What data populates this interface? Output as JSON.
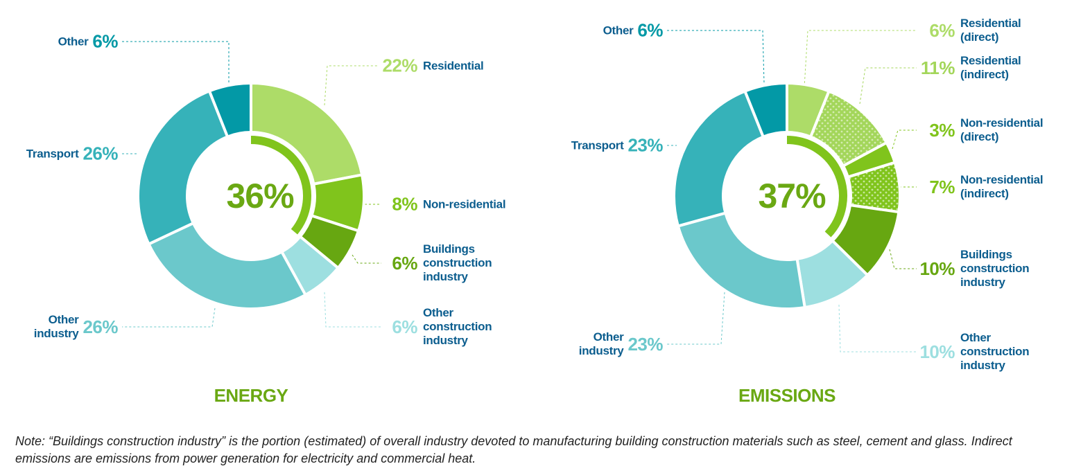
{
  "chart_data": [
    {
      "type": "pie",
      "variant": "donut",
      "title": "ENERGY",
      "center_label": "36%",
      "highlight_fraction": 36,
      "categories": [
        "Residential",
        "Non-residential",
        "Buildings construction industry",
        "Other construction industry",
        "Other industry",
        "Transport",
        "Other"
      ],
      "values": [
        22,
        8,
        6,
        6,
        26,
        26,
        6
      ],
      "value_labels": [
        "22%",
        "8%",
        "6%",
        "6%",
        "26%",
        "26%",
        "6%"
      ],
      "colors": [
        "#addc68",
        "#80c41c",
        "#67a711",
        "#9ddfe0",
        "#6bc8cb",
        "#36b2b9",
        "#0399a6"
      ],
      "patterned": [
        false,
        false,
        false,
        false,
        false,
        false,
        false
      ]
    },
    {
      "type": "pie",
      "variant": "donut",
      "title": "EMISSIONS",
      "center_label": "37%",
      "highlight_fraction": 37,
      "categories": [
        "Residential (direct)",
        "Residential (indirect)",
        "Non-residential (direct)",
        "Non-residential (indirect)",
        "Buildings construction industry",
        "Other construction industry",
        "Other industry",
        "Transport",
        "Other"
      ],
      "values": [
        6,
        11,
        3,
        7,
        10,
        10,
        23,
        23,
        6
      ],
      "value_labels": [
        "6%",
        "11%",
        "3%",
        "7%",
        "10%",
        "10%",
        "23%",
        "23%",
        "6%"
      ],
      "colors": [
        "#addc68",
        "#a3d65a",
        "#80c41c",
        "#80c41c",
        "#67a711",
        "#9ddfe0",
        "#6bc8cb",
        "#36b2b9",
        "#0399a6"
      ],
      "patterned": [
        false,
        true,
        false,
        true,
        false,
        false,
        false,
        false,
        false
      ]
    }
  ],
  "note": "Note: “Buildings construction industry” is the portion (estimated) of overall industry devoted to manufacturing building construction materials such as steel, cement and glass. Indirect emissions are emissions from power generation for electricity and commercial heat."
}
